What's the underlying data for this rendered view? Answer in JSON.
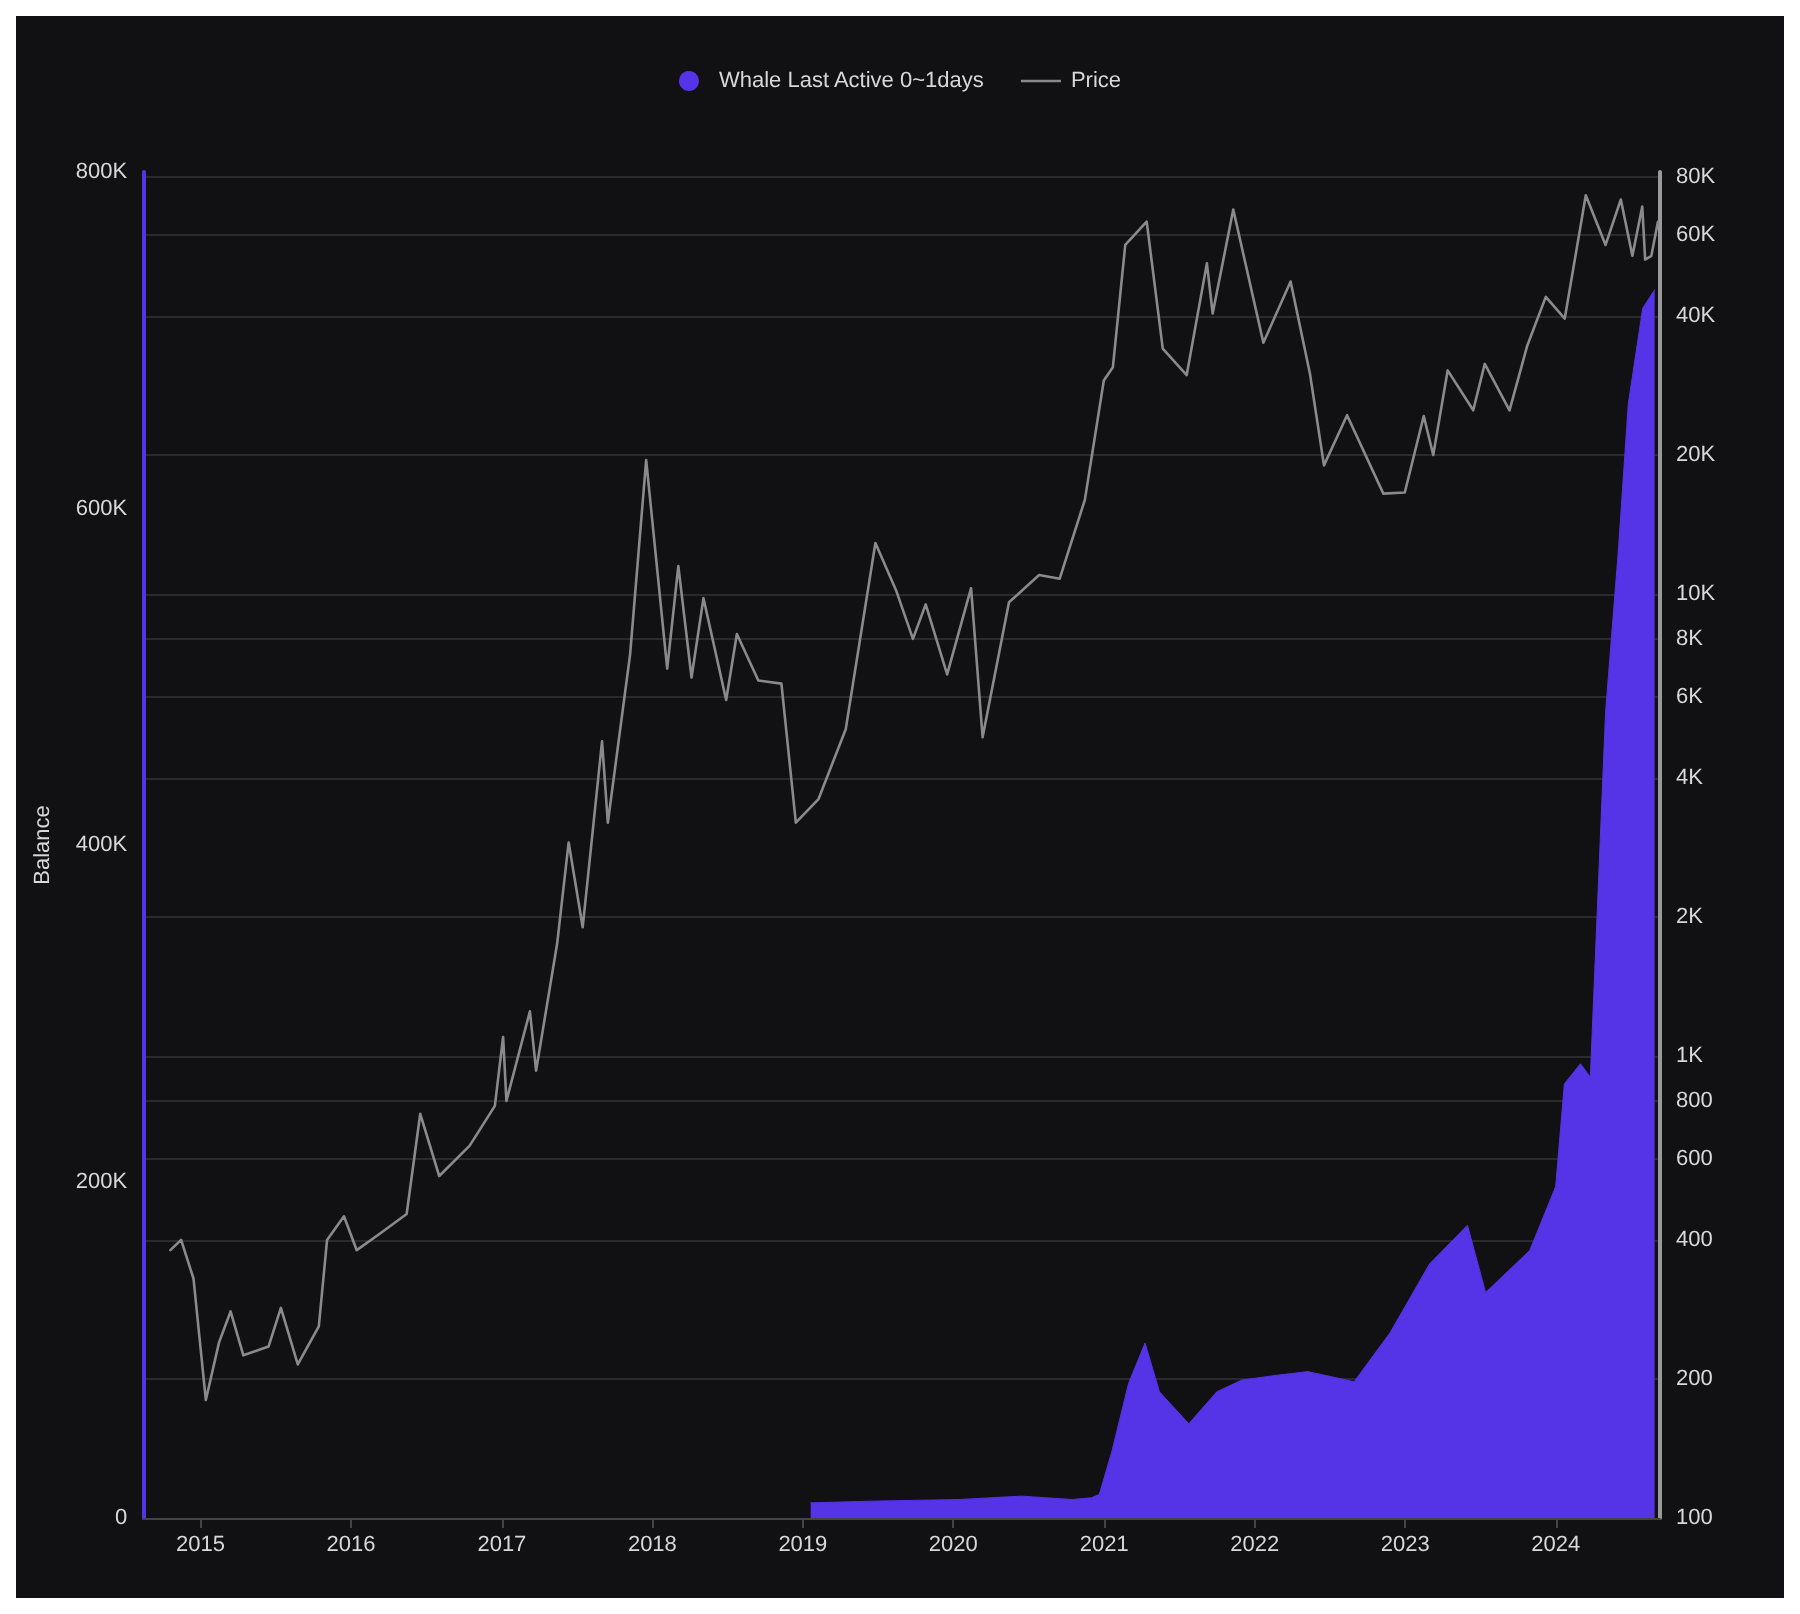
{
  "chart_data": {
    "type": "area",
    "ylabel": "Balance",
    "legend": "top",
    "grid": "y",
    "xlim": [
      "2014-08-15",
      "2024-09-10"
    ],
    "xticks": [
      "2015",
      "2016",
      "2017",
      "2018",
      "2019",
      "2020",
      "2021",
      "2022",
      "2023",
      "2024"
    ],
    "ylim": [
      0,
      800000
    ],
    "yticks": [
      {
        "value": 0,
        "label": "0"
      },
      {
        "value": 200000,
        "label": "200K"
      },
      {
        "value": 400000,
        "label": "400K"
      },
      {
        "value": 600000,
        "label": "600K"
      },
      {
        "value": 800000,
        "label": "800K"
      }
    ],
    "y2lim": [
      100,
      82000
    ],
    "log": "y2",
    "y2ticks": [
      100,
      200,
      400,
      600,
      800,
      {
        "value": 1000,
        "label": "1K"
      },
      {
        "value": 2000,
        "label": "2K"
      },
      {
        "value": 4000,
        "label": "4K"
      },
      {
        "value": 6000,
        "label": "6K"
      },
      {
        "value": 8000,
        "label": "8K"
      },
      {
        "value": 10000,
        "label": "10K"
      },
      {
        "value": 20000,
        "label": "20K"
      },
      {
        "value": 40000,
        "label": "40K"
      },
      {
        "value": 60000,
        "label": "60K"
      },
      {
        "value": 80000,
        "label": "80K"
      }
    ],
    "series": [
      {
        "name": "Whale Last Active 0~1days",
        "color": "#5533e6",
        "x": [
          "2019-01-20",
          "2019-06-15",
          "2020-01-15",
          "2020-06-15",
          "2020-10-15",
          "2020-12-01",
          "2020-12-20",
          "2021-01-20",
          "2021-03-01",
          "2021-04-10",
          "2021-05-15",
          "2021-07-25",
          "2021-10-01",
          "2021-12-01",
          "2022-03-01",
          "2022-05-10",
          "2022-08-30",
          "2022-11-25",
          "2023-03-01",
          "2023-06-01",
          "2023-07-15",
          "2023-10-30",
          "2024-01-01",
          "2024-01-22",
          "2024-03-01",
          "2024-03-25",
          "2024-05-01",
          "2024-06-01",
          "2024-06-25",
          "2024-07-30",
          "2024-08-28"
        ],
        "values": [
          9000,
          10000,
          11000,
          13000,
          11000,
          12000,
          14000,
          40000,
          80000,
          104000,
          75000,
          56000,
          75000,
          82000,
          85000,
          87000,
          81000,
          110000,
          151000,
          174000,
          134000,
          159000,
          197000,
          258000,
          270000,
          262000,
          479000,
          575000,
          662000,
          719000,
          730000
        ]
      },
      {
        "name": "Price",
        "type": "line",
        "axis": "y2",
        "color": "#8a8a8a",
        "x": [
          "2014-10-20",
          "2014-11-15",
          "2014-12-15",
          "2015-01-14",
          "2015-02-15",
          "2015-03-15",
          "2015-04-15",
          "2015-06-15",
          "2015-07-15",
          "2015-08-25",
          "2015-10-15",
          "2015-11-04",
          "2015-12-15",
          "2016-01-15",
          "2016-03-15",
          "2016-05-15",
          "2016-06-17",
          "2016-08-02",
          "2016-10-15",
          "2016-12-15",
          "2017-01-04",
          "2017-01-12",
          "2017-03-10",
          "2017-03-25",
          "2017-05-15",
          "2017-06-12",
          "2017-07-16",
          "2017-09-01",
          "2017-09-15",
          "2017-11-08",
          "2017-12-17",
          "2018-02-06",
          "2018-03-05",
          "2018-04-06",
          "2018-05-05",
          "2018-06-29",
          "2018-07-25",
          "2018-09-15",
          "2018-11-10",
          "2018-12-15",
          "2019-02-08",
          "2019-04-15",
          "2019-06-26",
          "2019-08-15",
          "2019-09-25",
          "2019-10-26",
          "2019-12-17",
          "2020-02-13",
          "2020-03-12",
          "2020-05-15",
          "2020-07-27",
          "2020-09-15",
          "2020-11-15",
          "2020-12-31",
          "2021-01-22",
          "2021-02-21",
          "2021-04-14",
          "2021-05-23",
          "2021-07-20",
          "2021-09-07",
          "2021-09-21",
          "2021-11-10",
          "2022-01-22",
          "2022-03-29",
          "2022-05-15",
          "2022-06-18",
          "2022-08-13",
          "2022-11-09",
          "2022-12-31",
          "2023-02-15",
          "2023-03-10",
          "2023-04-14",
          "2023-06-15",
          "2023-07-13",
          "2023-09-11",
          "2023-10-24",
          "2023-12-08",
          "2024-01-23",
          "2024-03-14",
          "2024-05-01",
          "2024-06-07",
          "2024-07-05",
          "2024-07-29",
          "2024-08-05",
          "2024-08-20",
          "2024-09-05"
        ],
        "values": [
          380,
          400,
          330,
          180,
          240,
          280,
          225,
          235,
          285,
          215,
          260,
          400,
          450,
          380,
          415,
          455,
          750,
          550,
          640,
          780,
          1100,
          800,
          1250,
          930,
          1750,
          2900,
          1900,
          4800,
          3200,
          7400,
          19500,
          6900,
          11500,
          6600,
          9800,
          5900,
          8200,
          6500,
          6400,
          3200,
          3600,
          5100,
          12900,
          10200,
          8000,
          9500,
          6700,
          10300,
          4900,
          9600,
          11000,
          10800,
          16000,
          29000,
          31000,
          57000,
          64000,
          34000,
          29800,
          52000,
          40500,
          68000,
          35000,
          47500,
          30000,
          19000,
          24400,
          16500,
          16600,
          24300,
          20000,
          30500,
          25000,
          31500,
          25000,
          34500,
          44000,
          39500,
          73000,
          57000,
          71500,
          54000,
          69000,
          53000,
          54000,
          64000
        ]
      }
    ]
  }
}
